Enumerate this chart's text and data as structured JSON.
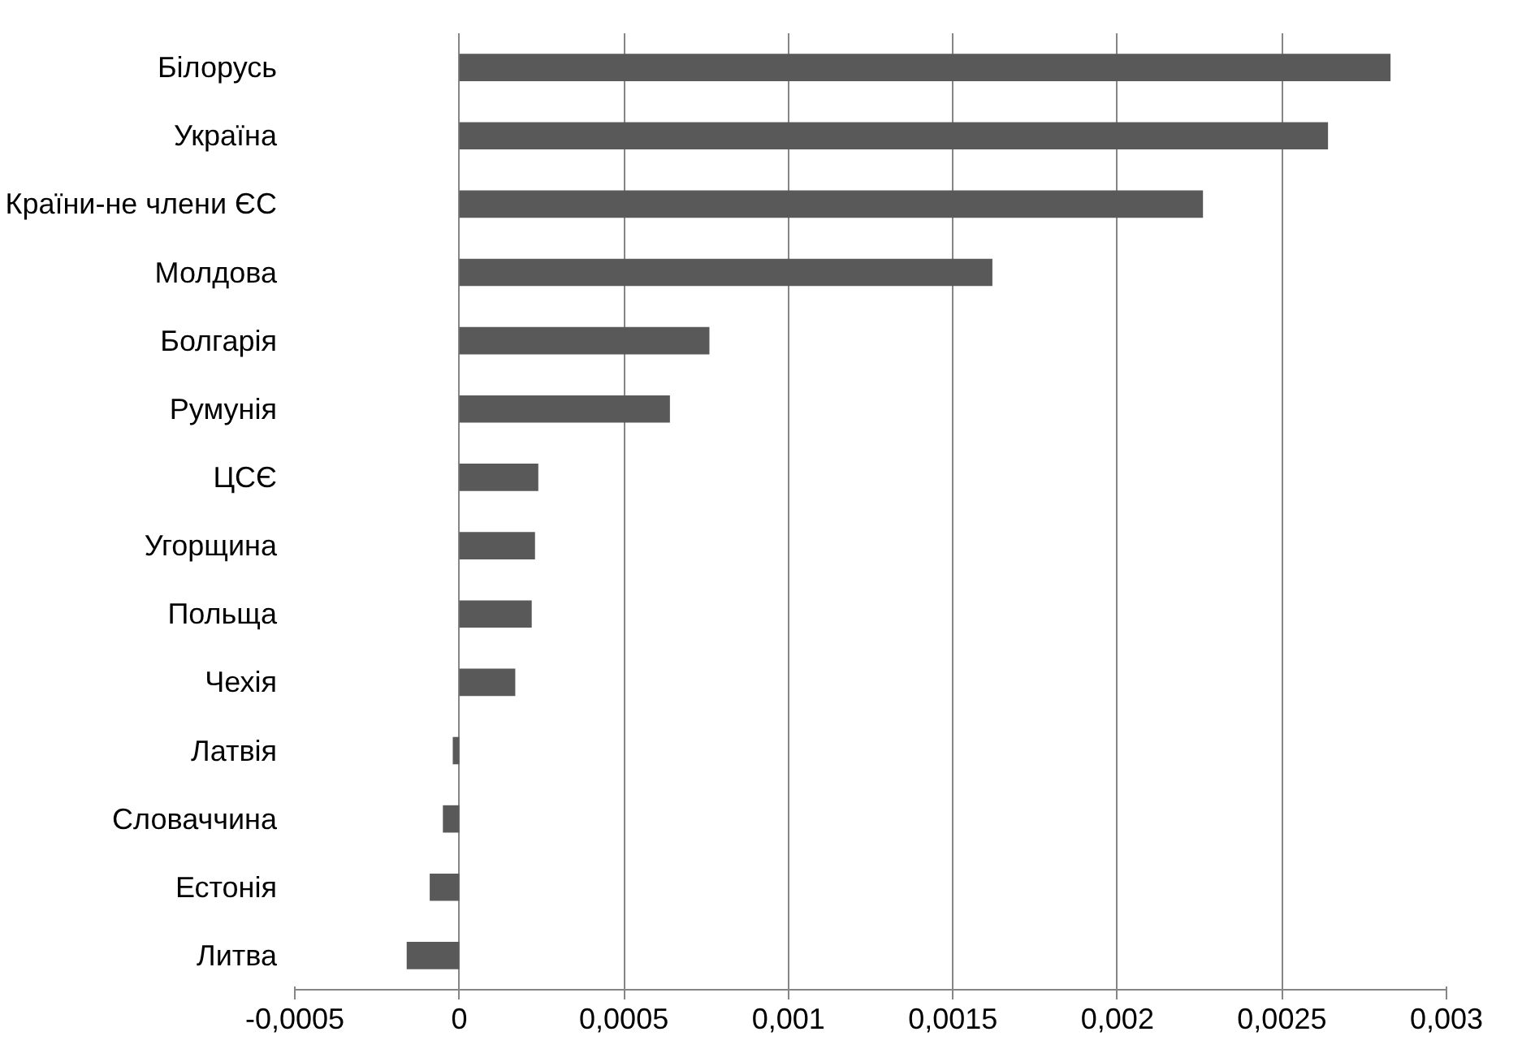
{
  "chart_data": {
    "type": "bar",
    "orientation": "horizontal",
    "categories": [
      "Білорусь",
      "Україна",
      "Країни-не члени ЄС",
      "Молдова",
      "Болгарія",
      "Румунія",
      "ЦСЄ",
      "Угорщина",
      "Польща",
      "Чехія",
      "Латвія",
      "Словаччина",
      "Естонія",
      "Литва"
    ],
    "values": [
      0.00283,
      0.00264,
      0.00226,
      0.00162,
      0.00076,
      0.00064,
      0.00024,
      0.00023,
      0.00022,
      0.00017,
      -2e-05,
      -5e-05,
      -9e-05,
      -0.00016
    ],
    "color": "#595959",
    "xlim": [
      -0.0005,
      0.003
    ],
    "xticks": [
      {
        "value": -0.0005,
        "label": "-0,0005"
      },
      0,
      {
        "value": 0.0005,
        "label": "0,0005"
      },
      {
        "value": 0.001,
        "label": "0,001"
      },
      {
        "value": 0.0015,
        "label": "0,0015"
      },
      {
        "value": 0.002,
        "label": "0,002"
      },
      {
        "value": 0.0025,
        "label": "0,0025"
      },
      {
        "value": 0.003,
        "label": "0,003"
      }
    ],
    "grid": "x"
  }
}
